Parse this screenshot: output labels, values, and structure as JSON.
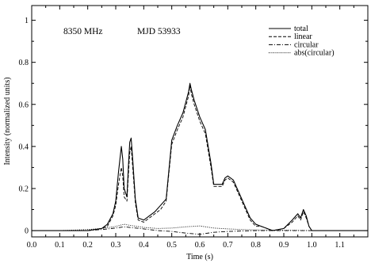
{
  "chart_data": {
    "type": "line",
    "title": "",
    "xlabel": "Time (s)",
    "ylabel": "Intensity (normalized units)",
    "xlim": [
      0.0,
      1.2
    ],
    "ylim": [
      -0.03,
      1.07
    ],
    "x_ticks": [
      0.0,
      0.1,
      0.2,
      0.3,
      0.4,
      0.5,
      0.6,
      0.7,
      0.8,
      0.9,
      1.0,
      1.1
    ],
    "x_tick_labels": [
      "0.0",
      "0.1",
      "0.2",
      "0.3",
      "0.4",
      "0.5",
      "0.6",
      "0.7",
      "0.8",
      "0.9",
      "1.0",
      "1.1"
    ],
    "y_ticks": [
      0,
      0.2,
      0.4,
      0.6,
      0.8,
      1
    ],
    "y_tick_labels": [
      "0",
      "0.2",
      "0.4",
      "0.6",
      "0.8",
      "1"
    ],
    "grid": false,
    "legend_position": "top-right",
    "annotations": [
      "8350 MHz",
      "MJD 53933"
    ],
    "series": [
      {
        "name": "total",
        "style": "solid",
        "x": [
          0.0,
          0.05,
          0.1,
          0.15,
          0.2,
          0.25,
          0.27,
          0.29,
          0.3,
          0.31,
          0.32,
          0.325,
          0.33,
          0.34,
          0.345,
          0.35,
          0.355,
          0.36,
          0.37,
          0.38,
          0.4,
          0.42,
          0.44,
          0.46,
          0.48,
          0.5,
          0.52,
          0.54,
          0.56,
          0.565,
          0.57,
          0.58,
          0.6,
          0.62,
          0.64,
          0.65,
          0.66,
          0.68,
          0.69,
          0.7,
          0.71,
          0.72,
          0.74,
          0.76,
          0.78,
          0.8,
          0.82,
          0.84,
          0.86,
          0.9,
          0.93,
          0.95,
          0.96,
          0.97,
          0.98,
          0.99,
          1.0,
          1.05,
          1.1,
          1.15,
          1.2
        ],
        "y": [
          0.0,
          0.0,
          0.0,
          0.0,
          0.0,
          0.01,
          0.03,
          0.08,
          0.14,
          0.28,
          0.4,
          0.34,
          0.2,
          0.16,
          0.3,
          0.42,
          0.44,
          0.35,
          0.15,
          0.06,
          0.05,
          0.07,
          0.09,
          0.12,
          0.15,
          0.43,
          0.5,
          0.56,
          0.66,
          0.7,
          0.67,
          0.62,
          0.54,
          0.48,
          0.32,
          0.22,
          0.22,
          0.22,
          0.25,
          0.26,
          0.25,
          0.24,
          0.18,
          0.12,
          0.06,
          0.03,
          0.02,
          0.01,
          0.0,
          0.01,
          0.05,
          0.08,
          0.06,
          0.1,
          0.07,
          0.02,
          0.0,
          0.0,
          0.0,
          0.0,
          0.0
        ]
      },
      {
        "name": "linear",
        "style": "dashed",
        "x": [
          0.0,
          0.05,
          0.1,
          0.15,
          0.2,
          0.25,
          0.27,
          0.29,
          0.3,
          0.31,
          0.32,
          0.325,
          0.33,
          0.34,
          0.345,
          0.35,
          0.355,
          0.36,
          0.37,
          0.38,
          0.4,
          0.42,
          0.44,
          0.46,
          0.48,
          0.5,
          0.52,
          0.54,
          0.56,
          0.565,
          0.57,
          0.58,
          0.6,
          0.62,
          0.64,
          0.65,
          0.66,
          0.68,
          0.69,
          0.7,
          0.71,
          0.72,
          0.74,
          0.76,
          0.78,
          0.8,
          0.82,
          0.84,
          0.86,
          0.9,
          0.93,
          0.95,
          0.96,
          0.97,
          0.98,
          0.99,
          1.0,
          1.05,
          1.1,
          1.15,
          1.2
        ],
        "y": [
          0.0,
          0.0,
          0.0,
          0.0,
          0.0,
          0.01,
          0.02,
          0.07,
          0.12,
          0.22,
          0.3,
          0.26,
          0.16,
          0.14,
          0.26,
          0.37,
          0.4,
          0.31,
          0.13,
          0.05,
          0.04,
          0.06,
          0.08,
          0.1,
          0.14,
          0.41,
          0.48,
          0.54,
          0.64,
          0.69,
          0.65,
          0.6,
          0.52,
          0.46,
          0.3,
          0.21,
          0.21,
          0.21,
          0.24,
          0.25,
          0.24,
          0.23,
          0.17,
          0.11,
          0.05,
          0.02,
          0.02,
          0.01,
          0.0,
          0.01,
          0.04,
          0.07,
          0.05,
          0.09,
          0.06,
          0.02,
          0.0,
          0.0,
          0.0,
          0.0,
          0.0
        ]
      },
      {
        "name": "circular",
        "style": "dash-dot",
        "x": [
          0.0,
          0.1,
          0.2,
          0.25,
          0.3,
          0.33,
          0.35,
          0.4,
          0.45,
          0.5,
          0.55,
          0.6,
          0.65,
          0.7,
          0.75,
          0.8,
          0.9,
          1.0,
          1.1,
          1.2
        ],
        "y": [
          0.0,
          0.0,
          0.0,
          0.005,
          0.012,
          0.018,
          0.015,
          0.008,
          0.0,
          -0.004,
          -0.012,
          -0.018,
          -0.008,
          -0.004,
          -0.002,
          0.0,
          0.0,
          0.0,
          0.0,
          0.0
        ]
      },
      {
        "name": "abs(circular)",
        "style": "dotted",
        "x": [
          0.0,
          0.1,
          0.2,
          0.25,
          0.3,
          0.33,
          0.35,
          0.4,
          0.45,
          0.5,
          0.55,
          0.6,
          0.65,
          0.7,
          0.75,
          0.8,
          0.9,
          1.0,
          1.1,
          1.2
        ],
        "y": [
          0.0,
          0.0,
          0.005,
          0.01,
          0.02,
          0.03,
          0.025,
          0.015,
          0.01,
          0.012,
          0.018,
          0.022,
          0.012,
          0.008,
          0.005,
          0.003,
          0.002,
          0.0,
          0.0,
          0.0
        ]
      }
    ]
  }
}
